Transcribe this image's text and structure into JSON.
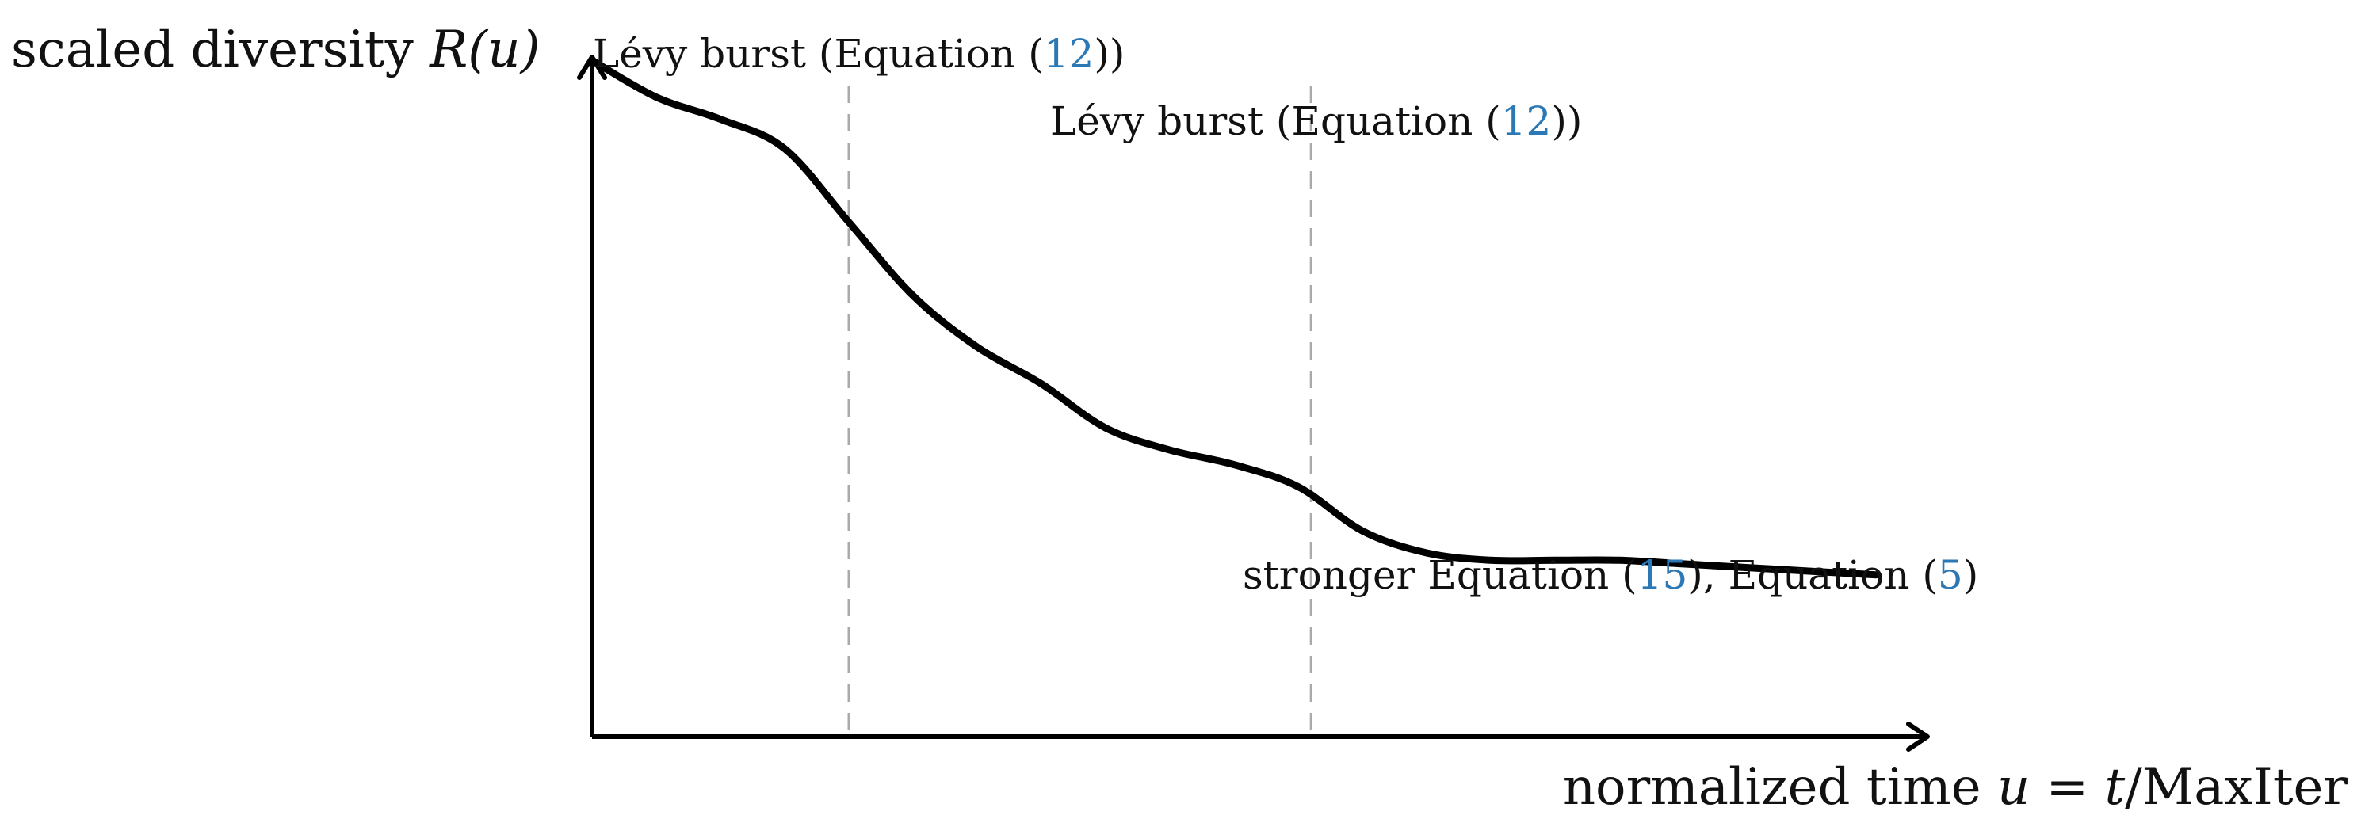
{
  "chart_data": {
    "type": "line",
    "title": "",
    "ylabel": {
      "text": "scaled diversity ",
      "symbol": "R(u)"
    },
    "xlabel": {
      "text": "normalized time ",
      "symbol_u": "u",
      "equals": " = ",
      "symbol_t": "t",
      "rest": "/MaxIter"
    },
    "xlim": [
      0,
      1
    ],
    "ylim": [
      0,
      1
    ],
    "grid": false,
    "legend": "none",
    "colors": {
      "curve": "#000000",
      "axes": "#000000",
      "markers": "#aaaaaa",
      "text": "#111111",
      "reference": "#2a78b5"
    },
    "series": [
      {
        "x": [
          0.0,
          0.05,
          0.1,
          0.15,
          0.2,
          0.25,
          0.3,
          0.35,
          0.4,
          0.45,
          0.5,
          0.55,
          0.6,
          0.65,
          0.7,
          0.75,
          0.8,
          0.85,
          0.9,
          0.95,
          1.0
        ],
        "y": [
          0.92,
          0.87,
          0.84,
          0.8,
          0.7,
          0.6,
          0.53,
          0.48,
          0.42,
          0.39,
          0.37,
          0.34,
          0.28,
          0.25,
          0.24,
          0.24,
          0.24,
          0.235,
          0.23,
          0.225,
          0.22
        ]
      }
    ],
    "markers": [
      {
        "x": 0.2,
        "style": "dashed"
      },
      {
        "x": 0.56,
        "style": "dashed"
      }
    ],
    "annotations": [
      {
        "id": "burst1",
        "prefix": "Lévy burst (Equation (",
        "ref": "12",
        "suffix": "))"
      },
      {
        "id": "burst2",
        "prefix": "Lévy burst (Equation (",
        "ref": "12",
        "suffix": "))"
      },
      {
        "id": "stronger",
        "prefix": "stronger Equation (",
        "ref": "15",
        "middle": "), Equation (",
        "ref2": "5",
        "suffix": ")"
      }
    ]
  }
}
